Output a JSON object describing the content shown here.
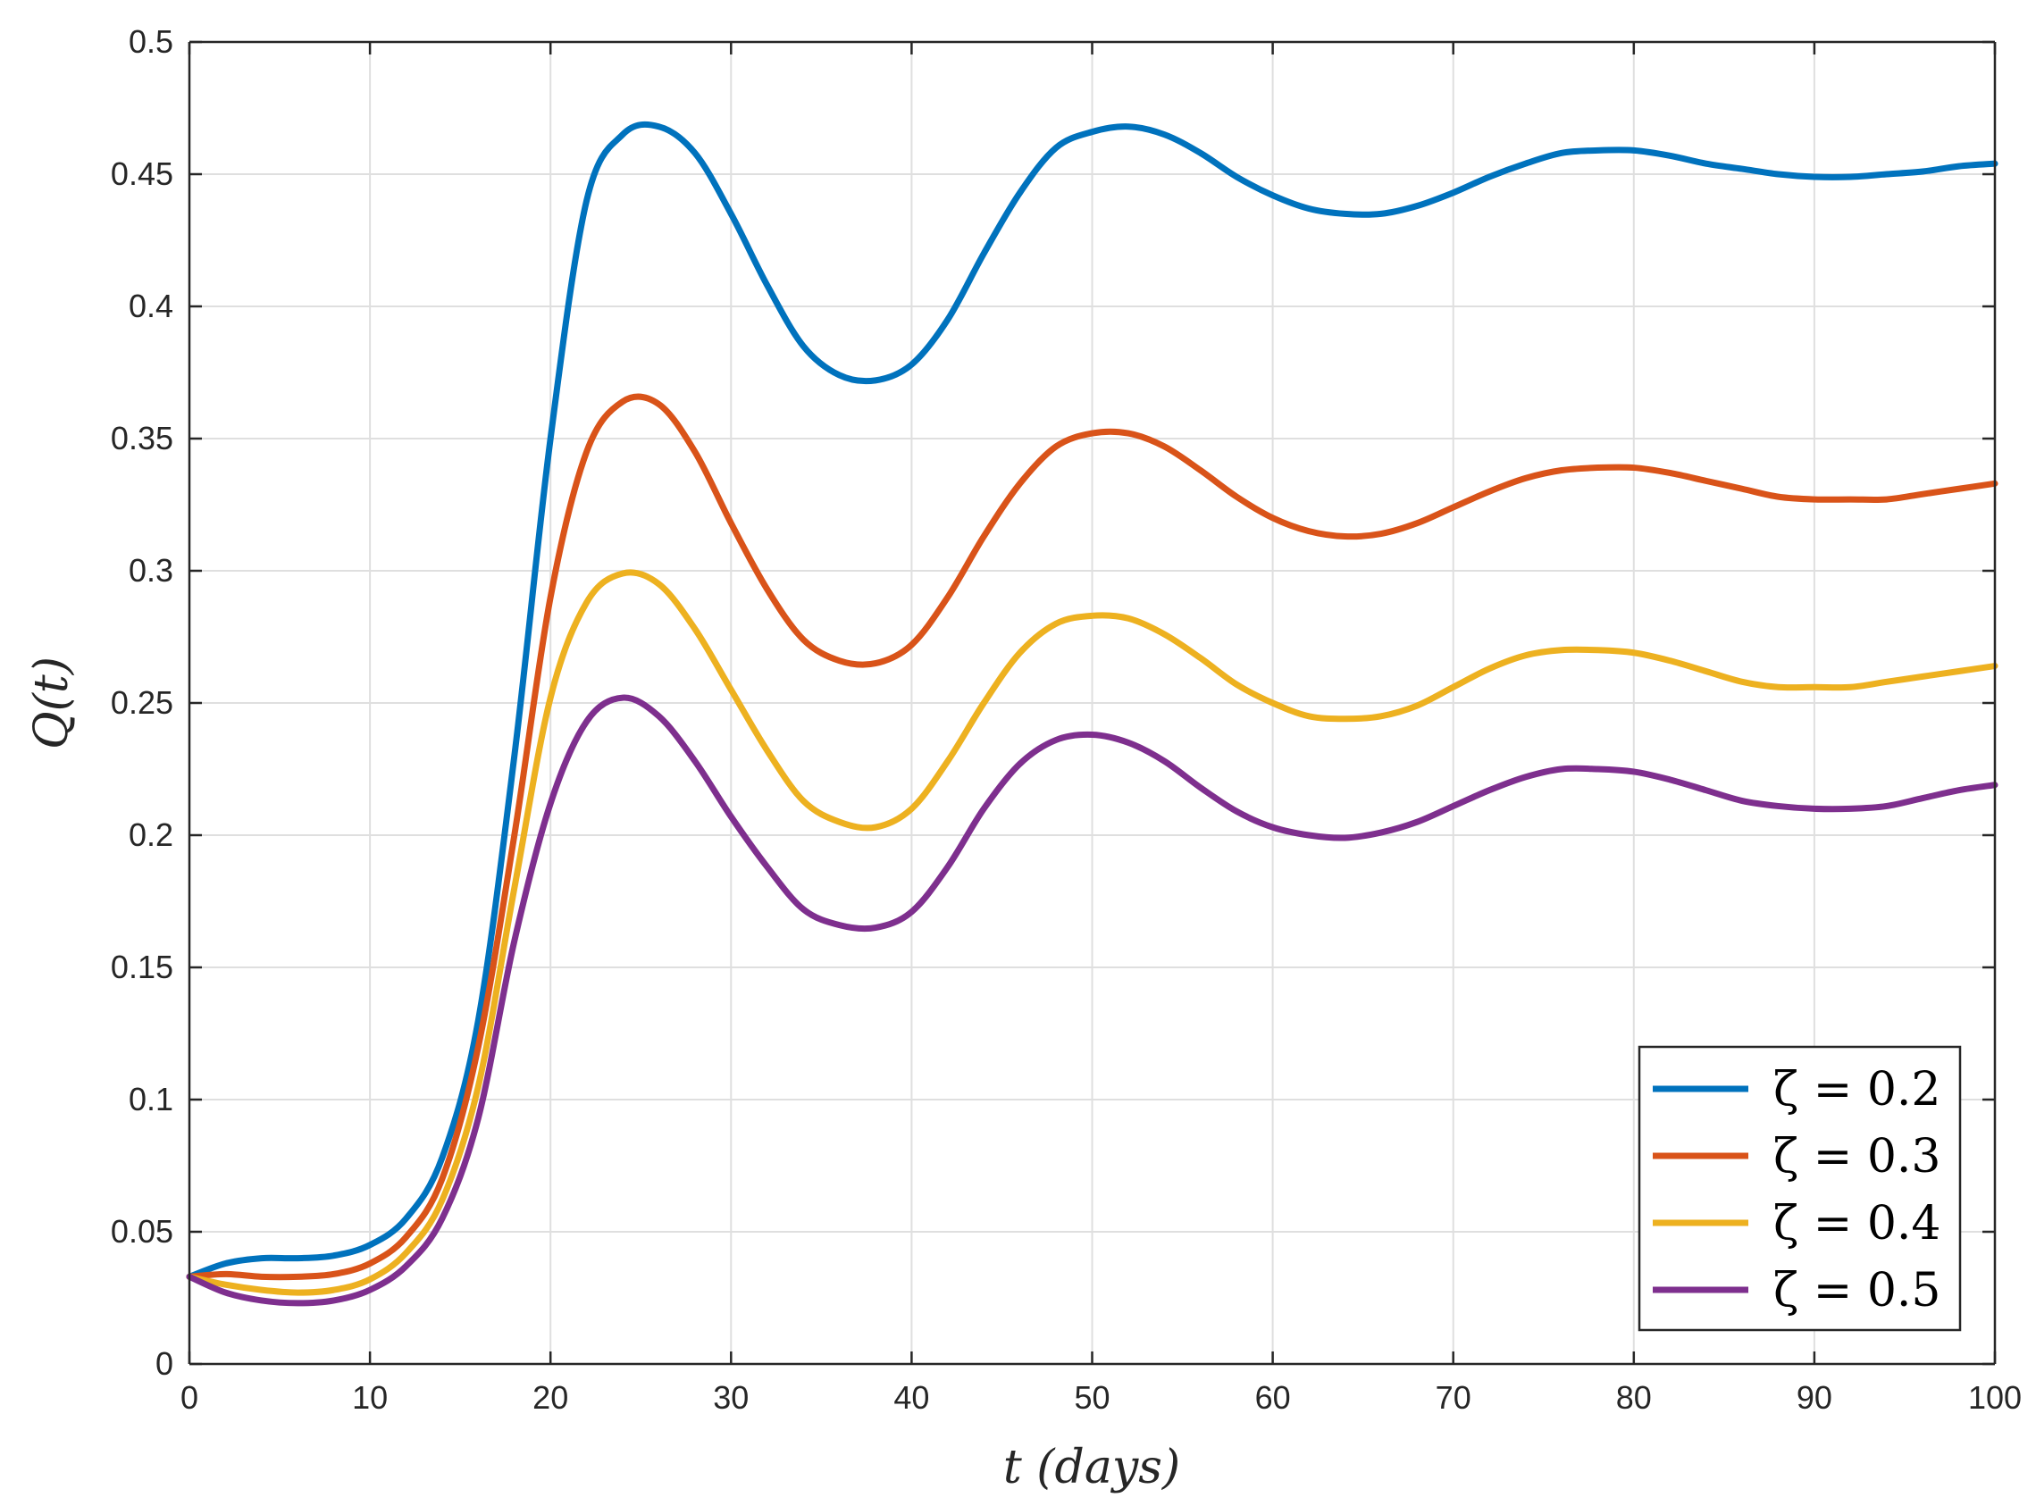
{
  "chart_data": {
    "type": "line",
    "title": "",
    "xlabel": "t (days)",
    "ylabel": "Q(t)",
    "xlim": [
      0,
      100
    ],
    "ylim": [
      0,
      0.5
    ],
    "grid": true,
    "legend_position": "bottom-right",
    "x_ticks": [
      "0",
      "10",
      "20",
      "30",
      "40",
      "50",
      "60",
      "70",
      "80",
      "90",
      "100"
    ],
    "y_ticks": [
      "0",
      "0.05",
      "0.1",
      "0.15",
      "0.2",
      "0.25",
      "0.3",
      "0.35",
      "0.4",
      "0.45",
      "0.5"
    ],
    "series": [
      {
        "name": "ζ = 0.2",
        "color": "#0072BD",
        "x": [
          0,
          2,
          4,
          6,
          8,
          10,
          12,
          14,
          16,
          18,
          20,
          22,
          24,
          26,
          28,
          30,
          32,
          34,
          36,
          38,
          40,
          42,
          44,
          46,
          48,
          50,
          52,
          54,
          56,
          58,
          60,
          62,
          64,
          66,
          68,
          70,
          72,
          74,
          76,
          78,
          80,
          82,
          84,
          86,
          88,
          90,
          92,
          94,
          96,
          98,
          100
        ],
        "y": [
          0.033,
          0.038,
          0.04,
          0.04,
          0.041,
          0.045,
          0.055,
          0.078,
          0.13,
          0.23,
          0.35,
          0.44,
          0.465,
          0.468,
          0.458,
          0.435,
          0.408,
          0.385,
          0.374,
          0.372,
          0.378,
          0.395,
          0.42,
          0.443,
          0.46,
          0.466,
          0.468,
          0.465,
          0.458,
          0.449,
          0.442,
          0.437,
          0.435,
          0.435,
          0.438,
          0.443,
          0.449,
          0.454,
          0.458,
          0.459,
          0.459,
          0.457,
          0.454,
          0.452,
          0.45,
          0.449,
          0.449,
          0.45,
          0.451,
          0.453,
          0.454
        ]
      },
      {
        "name": "ζ = 0.3",
        "color": "#D95319",
        "x": [
          0,
          2,
          4,
          6,
          8,
          10,
          12,
          14,
          16,
          18,
          20,
          22,
          24,
          26,
          28,
          30,
          32,
          34,
          36,
          38,
          40,
          42,
          44,
          46,
          48,
          50,
          52,
          54,
          56,
          58,
          60,
          62,
          64,
          66,
          68,
          70,
          72,
          74,
          76,
          78,
          80,
          82,
          84,
          86,
          88,
          90,
          92,
          94,
          96,
          98,
          100
        ],
        "y": [
          0.033,
          0.034,
          0.033,
          0.033,
          0.034,
          0.038,
          0.048,
          0.07,
          0.12,
          0.2,
          0.29,
          0.345,
          0.364,
          0.363,
          0.345,
          0.318,
          0.293,
          0.274,
          0.266,
          0.265,
          0.272,
          0.29,
          0.313,
          0.333,
          0.347,
          0.352,
          0.352,
          0.347,
          0.338,
          0.328,
          0.32,
          0.315,
          0.313,
          0.314,
          0.318,
          0.324,
          0.33,
          0.335,
          0.338,
          0.339,
          0.339,
          0.337,
          0.334,
          0.331,
          0.328,
          0.327,
          0.327,
          0.327,
          0.329,
          0.331,
          0.333
        ]
      },
      {
        "name": "ζ = 0.4",
        "color": "#EDB120",
        "x": [
          0,
          2,
          4,
          6,
          8,
          10,
          12,
          14,
          16,
          18,
          20,
          22,
          24,
          26,
          28,
          30,
          32,
          34,
          36,
          38,
          40,
          42,
          44,
          46,
          48,
          50,
          52,
          54,
          56,
          58,
          60,
          62,
          64,
          66,
          68,
          70,
          72,
          74,
          76,
          78,
          80,
          82,
          84,
          86,
          88,
          90,
          92,
          94,
          96,
          98,
          100
        ],
        "y": [
          0.033,
          0.03,
          0.028,
          0.027,
          0.028,
          0.032,
          0.042,
          0.062,
          0.105,
          0.18,
          0.252,
          0.288,
          0.299,
          0.295,
          0.278,
          0.255,
          0.232,
          0.213,
          0.205,
          0.203,
          0.21,
          0.228,
          0.25,
          0.269,
          0.28,
          0.283,
          0.282,
          0.276,
          0.267,
          0.257,
          0.25,
          0.245,
          0.244,
          0.245,
          0.249,
          0.256,
          0.263,
          0.268,
          0.27,
          0.27,
          0.269,
          0.266,
          0.262,
          0.258,
          0.256,
          0.256,
          0.256,
          0.258,
          0.26,
          0.262,
          0.264
        ]
      },
      {
        "name": "ζ = 0.5",
        "color": "#7E2F8E",
        "x": [
          0,
          2,
          4,
          6,
          8,
          10,
          12,
          14,
          16,
          18,
          20,
          22,
          24,
          26,
          28,
          30,
          32,
          34,
          36,
          38,
          40,
          42,
          44,
          46,
          48,
          50,
          52,
          54,
          56,
          58,
          60,
          62,
          64,
          66,
          68,
          70,
          72,
          74,
          76,
          78,
          80,
          82,
          84,
          86,
          88,
          90,
          92,
          94,
          96,
          98,
          100
        ],
        "y": [
          0.033,
          0.027,
          0.024,
          0.023,
          0.024,
          0.028,
          0.037,
          0.055,
          0.093,
          0.16,
          0.212,
          0.243,
          0.252,
          0.245,
          0.228,
          0.207,
          0.188,
          0.172,
          0.166,
          0.165,
          0.171,
          0.188,
          0.21,
          0.227,
          0.236,
          0.238,
          0.235,
          0.228,
          0.218,
          0.209,
          0.203,
          0.2,
          0.199,
          0.201,
          0.205,
          0.211,
          0.217,
          0.222,
          0.225,
          0.225,
          0.224,
          0.221,
          0.217,
          0.213,
          0.211,
          0.21,
          0.21,
          0.211,
          0.214,
          0.217,
          0.219
        ]
      }
    ]
  }
}
